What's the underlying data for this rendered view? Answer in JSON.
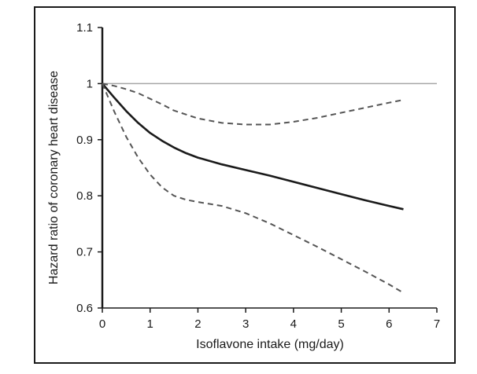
{
  "chart_data": {
    "type": "line",
    "title": "",
    "xlabel": "Isoflavone intake (mg/day)",
    "ylabel": "Hazard ratio of coronary heart disease",
    "xlim": [
      0,
      7
    ],
    "ylim": [
      0.6,
      1.1
    ],
    "x_ticks": [
      "0",
      "1",
      "2",
      "3",
      "4",
      "5",
      "6",
      "7"
    ],
    "y_ticks": [
      "0.6",
      "0.7",
      "0.8",
      "0.9",
      "1",
      "1.1"
    ],
    "grid": false,
    "legend": "none",
    "reference_line": {
      "y": 1.0,
      "color": "#a6a6a6"
    },
    "series": [
      {
        "style": "solid",
        "color": "#1a1a1a",
        "x": [
          0,
          0.25,
          0.5,
          0.75,
          1.0,
          1.25,
          1.5,
          1.75,
          2.0,
          2.5,
          3.0,
          3.5,
          4.0,
          4.5,
          5.0,
          5.5,
          6.0,
          6.3
        ],
        "y": [
          1.0,
          0.975,
          0.951,
          0.93,
          0.912,
          0.898,
          0.886,
          0.876,
          0.868,
          0.856,
          0.846,
          0.836,
          0.825,
          0.814,
          0.803,
          0.792,
          0.782,
          0.776
        ]
      },
      {
        "style": "dashed",
        "color": "#555555",
        "x": [
          0,
          0.25,
          0.5,
          0.75,
          1.0,
          1.25,
          1.5,
          2.0,
          2.5,
          3.0,
          3.5,
          4.0,
          4.5,
          5.0,
          5.5,
          6.0,
          6.3
        ],
        "y": [
          1.0,
          0.996,
          0.99,
          0.983,
          0.973,
          0.963,
          0.952,
          0.938,
          0.93,
          0.927,
          0.927,
          0.932,
          0.939,
          0.948,
          0.957,
          0.966,
          0.971
        ]
      },
      {
        "style": "dashed",
        "color": "#555555",
        "x": [
          0,
          0.25,
          0.5,
          0.75,
          1.0,
          1.25,
          1.5,
          1.75,
          2.0,
          2.5,
          3.0,
          3.5,
          4.0,
          4.5,
          5.0,
          5.5,
          6.0,
          6.3
        ],
        "y": [
          1.0,
          0.95,
          0.905,
          0.868,
          0.838,
          0.815,
          0.8,
          0.793,
          0.789,
          0.782,
          0.769,
          0.751,
          0.73,
          0.709,
          0.687,
          0.665,
          0.642,
          0.627
        ]
      }
    ]
  }
}
